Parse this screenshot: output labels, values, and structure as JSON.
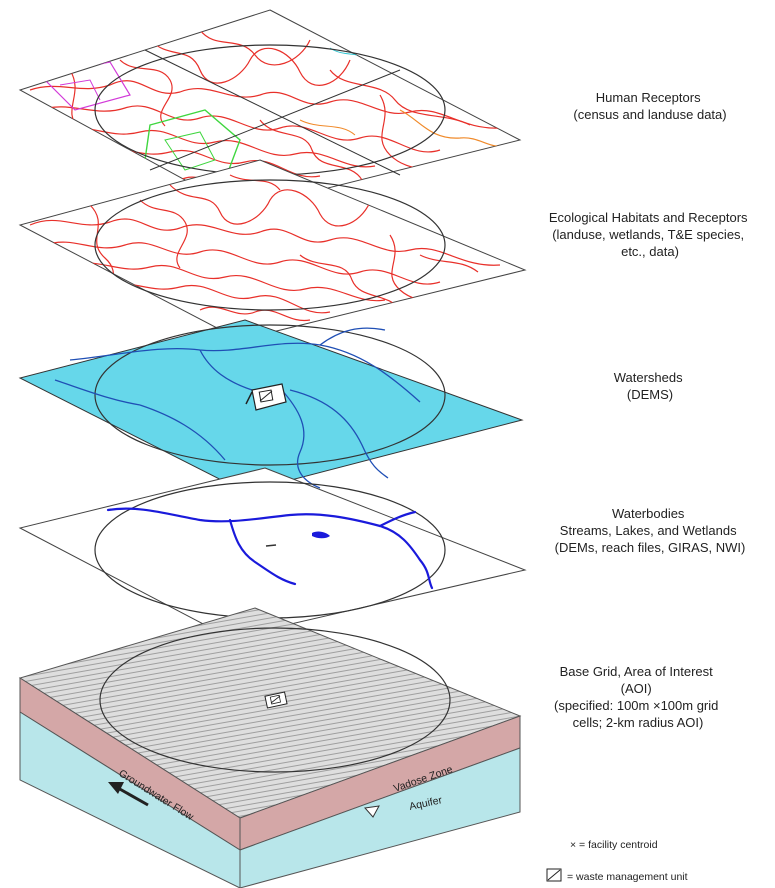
{
  "layers": [
    {
      "id": "human",
      "label_lines": [
        "Human Receptors",
        "(census and landuse data)"
      ],
      "fill": "#ffffff",
      "line_color": "#e8302a"
    },
    {
      "id": "eco",
      "label_lines": [
        "Ecological Habitats and Receptors",
        "(landuse, wetlands, T&E species,",
        "etc., data)"
      ],
      "fill": "#ffffff",
      "line_color": "#e8302a"
    },
    {
      "id": "watersheds",
      "label_lines": [
        "Watersheds",
        "(DEMS)"
      ],
      "fill": "#66d7ea",
      "line_color": "#1f4fb5"
    },
    {
      "id": "waterbodies",
      "label_lines": [
        "Waterbodies",
        "Streams, Lakes, and Wetlands",
        "(DEMs, reach files, GIRAS, NWI)"
      ],
      "fill": "#ffffff",
      "line_color": "#1a1adb"
    },
    {
      "id": "base",
      "label_lines": [
        "Base Grid, Area of Interest",
        "(AOI)",
        "(specified: 100m ×100m grid",
        "cells; 2-km radius AOI)"
      ],
      "fill": "#d9d9d9"
    }
  ],
  "block": {
    "vadose_label": "Vadose Zone",
    "aquifer_label": "Aquifer",
    "flow_label": "Groundwater Flow",
    "vadose_color": "#d4a7a7",
    "aquifer_color": "#b8e6ea"
  },
  "legend": {
    "centroid": "× = facility centroid",
    "unit": "= waste management unit"
  }
}
